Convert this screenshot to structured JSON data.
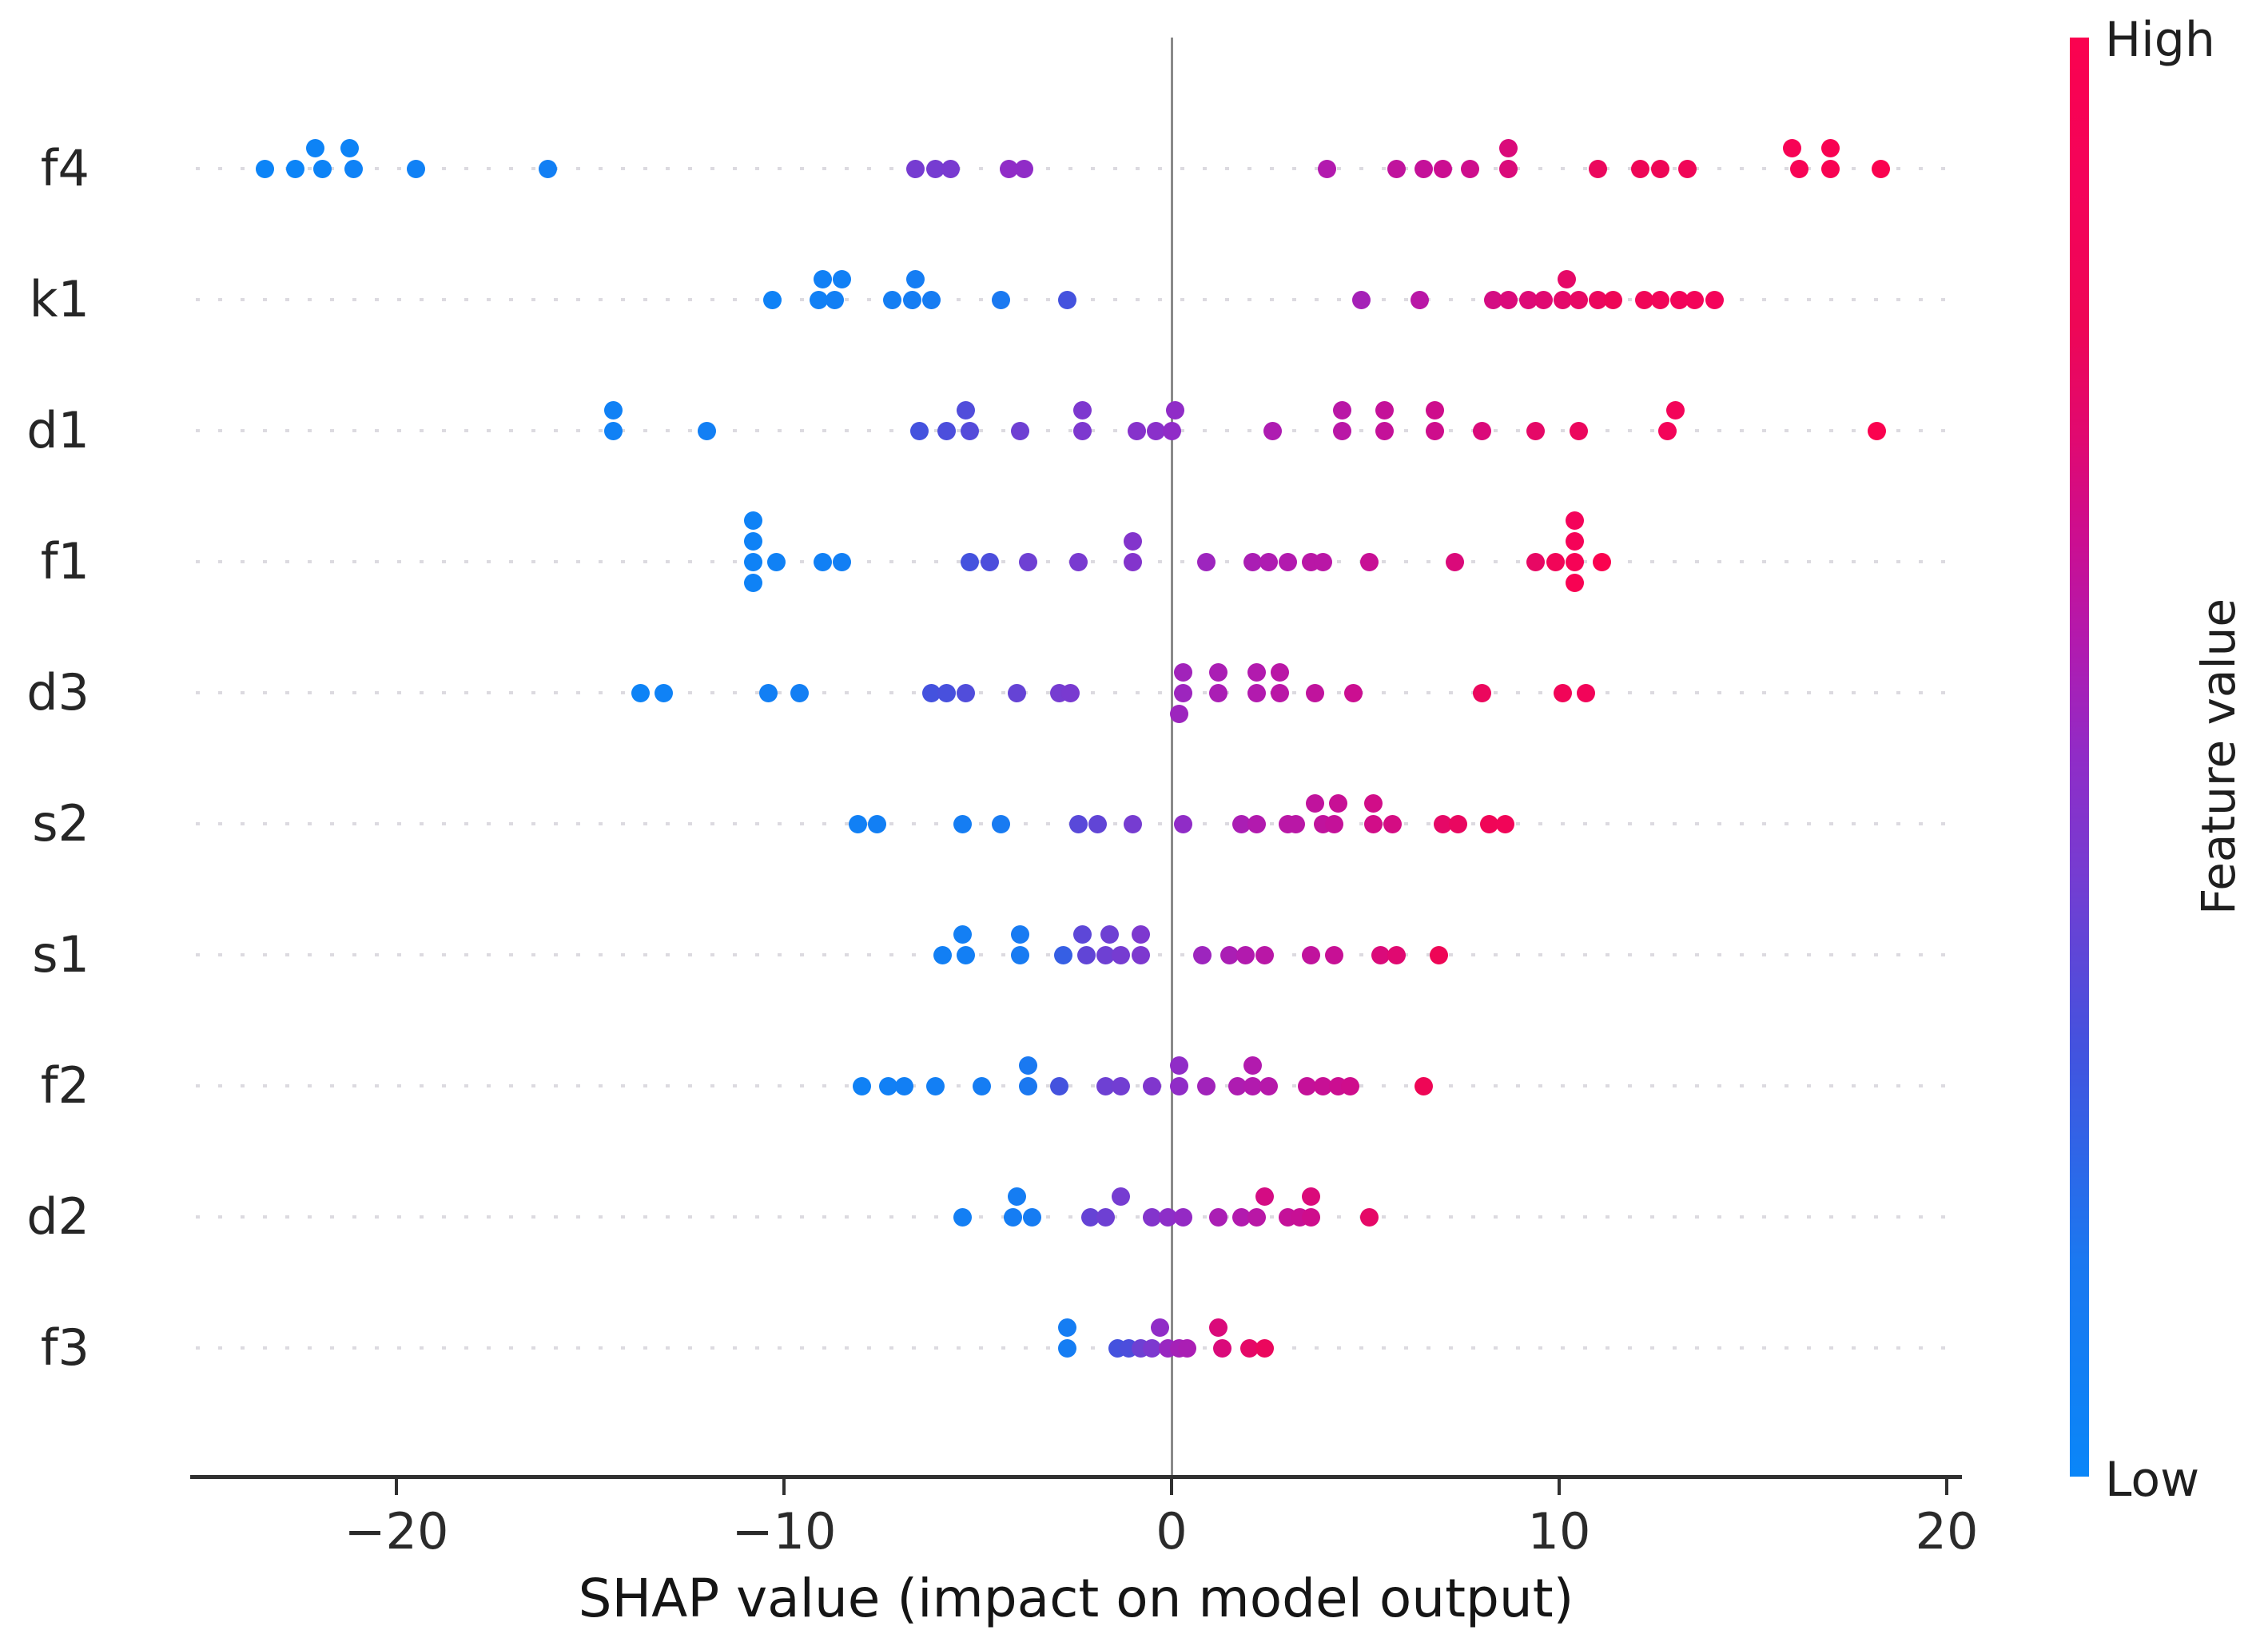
{
  "chart_data": {
    "type": "scatter",
    "subtype": "shap-beeswarm-summary",
    "title": "",
    "xlabel": "SHAP value (impact on model output)",
    "x_ticks": [
      -20,
      -10,
      0,
      10,
      20
    ],
    "x_tick_labels": [
      "−20",
      "−10",
      "0",
      "10",
      "20"
    ],
    "xlim": [
      -25.3,
      20.4
    ],
    "grid": "dotted-horizontal-rows",
    "legend_position": "right-colorbar",
    "features": [
      "f4",
      "k1",
      "d1",
      "f1",
      "d3",
      "s2",
      "s1",
      "f2",
      "d2",
      "f3"
    ],
    "colorbar": {
      "label": "Feature value",
      "high": "High",
      "low": "Low"
    },
    "point_format": "[shap_value, vertical_jitter_level, feature_value_normalized_0to1]",
    "series": [
      {
        "name": "f4",
        "points": [
          [
            -23.4,
            0,
            0.02
          ],
          [
            -22.6,
            0,
            0.02
          ],
          [
            -22.1,
            1,
            0.03
          ],
          [
            -21.9,
            0,
            0.03
          ],
          [
            -21.2,
            1,
            0.03
          ],
          [
            -21.1,
            0,
            0.04
          ],
          [
            -19.5,
            0,
            0.05
          ],
          [
            -16.1,
            0,
            0.07
          ],
          [
            -6.6,
            0,
            0.42
          ],
          [
            -6.1,
            0,
            0.42
          ],
          [
            -5.7,
            0,
            0.43
          ],
          [
            -4.2,
            0,
            0.5
          ],
          [
            -3.8,
            0,
            0.5
          ],
          [
            4.0,
            0,
            0.58
          ],
          [
            5.8,
            0,
            0.62
          ],
          [
            6.5,
            0,
            0.63
          ],
          [
            7.0,
            0,
            0.65
          ],
          [
            7.7,
            0,
            0.66
          ],
          [
            8.7,
            1,
            0.7
          ],
          [
            8.7,
            0,
            0.7
          ],
          [
            11.0,
            0,
            0.78
          ],
          [
            12.1,
            0,
            0.8
          ],
          [
            12.6,
            0,
            0.8
          ],
          [
            13.3,
            0,
            0.83
          ],
          [
            16.0,
            1,
            0.95
          ],
          [
            16.2,
            0,
            0.95
          ],
          [
            17.0,
            1,
            0.97
          ],
          [
            17.0,
            0,
            0.97
          ],
          [
            18.3,
            0,
            1.0
          ]
        ]
      },
      {
        "name": "k1",
        "points": [
          [
            -10.3,
            0,
            0.04
          ],
          [
            -9.1,
            0,
            0.06
          ],
          [
            -9.0,
            1,
            0.06
          ],
          [
            -8.7,
            0,
            0.07
          ],
          [
            -8.5,
            1,
            0.06
          ],
          [
            -7.2,
            0,
            0.09
          ],
          [
            -6.7,
            0,
            0.1
          ],
          [
            -6.6,
            1,
            0.1
          ],
          [
            -6.2,
            0,
            0.11
          ],
          [
            -4.4,
            0,
            0.14
          ],
          [
            -2.7,
            0,
            0.3
          ],
          [
            4.9,
            0,
            0.55
          ],
          [
            6.4,
            0,
            0.6
          ],
          [
            8.3,
            0,
            0.68
          ],
          [
            8.7,
            0,
            0.7
          ],
          [
            9.2,
            0,
            0.71
          ],
          [
            9.6,
            0,
            0.72
          ],
          [
            10.1,
            0,
            0.74
          ],
          [
            10.2,
            1,
            0.75
          ],
          [
            10.5,
            0,
            0.76
          ],
          [
            11.0,
            0,
            0.78
          ],
          [
            11.4,
            0,
            0.8
          ],
          [
            12.2,
            0,
            0.83
          ],
          [
            12.6,
            0,
            0.85
          ],
          [
            13.1,
            0,
            0.87
          ],
          [
            13.5,
            0,
            0.88
          ],
          [
            14.0,
            0,
            0.9
          ]
        ]
      },
      {
        "name": "d1",
        "points": [
          [
            -14.4,
            1,
            0.05
          ],
          [
            -14.4,
            0,
            0.05
          ],
          [
            -12.0,
            0,
            0.07
          ],
          [
            -6.5,
            0,
            0.3
          ],
          [
            -5.8,
            0,
            0.32
          ],
          [
            -5.3,
            1,
            0.33
          ],
          [
            -5.2,
            0,
            0.34
          ],
          [
            -3.9,
            0,
            0.4
          ],
          [
            -2.3,
            1,
            0.44
          ],
          [
            -2.3,
            0,
            0.44
          ],
          [
            -0.9,
            0,
            0.47
          ],
          [
            -0.4,
            0,
            0.48
          ],
          [
            0.0,
            0,
            0.5
          ],
          [
            0.1,
            1,
            0.5
          ],
          [
            2.6,
            0,
            0.57
          ],
          [
            4.4,
            1,
            0.6
          ],
          [
            4.4,
            0,
            0.6
          ],
          [
            5.5,
            1,
            0.63
          ],
          [
            5.5,
            0,
            0.63
          ],
          [
            6.8,
            1,
            0.66
          ],
          [
            6.8,
            0,
            0.66
          ],
          [
            8.0,
            0,
            0.7
          ],
          [
            9.4,
            0,
            0.75
          ],
          [
            10.5,
            0,
            0.78
          ],
          [
            12.8,
            0,
            0.88
          ],
          [
            13.0,
            1,
            0.88
          ],
          [
            18.2,
            0,
            1.0
          ]
        ]
      },
      {
        "name": "f1",
        "points": [
          [
            -10.8,
            2,
            0.04
          ],
          [
            -10.8,
            1,
            0.04
          ],
          [
            -10.8,
            0,
            0.04
          ],
          [
            -10.8,
            -1,
            0.04
          ],
          [
            -10.2,
            0,
            0.05
          ],
          [
            -9.0,
            0,
            0.06
          ],
          [
            -8.5,
            0,
            0.07
          ],
          [
            -5.2,
            0,
            0.3
          ],
          [
            -4.7,
            0,
            0.32
          ],
          [
            -3.7,
            0,
            0.4
          ],
          [
            -2.4,
            0,
            0.43
          ],
          [
            -1.0,
            1,
            0.46
          ],
          [
            -1.0,
            0,
            0.46
          ],
          [
            0.9,
            0,
            0.53
          ],
          [
            2.1,
            0,
            0.56
          ],
          [
            2.5,
            0,
            0.57
          ],
          [
            3.0,
            0,
            0.58
          ],
          [
            3.6,
            0,
            0.6
          ],
          [
            3.9,
            0,
            0.6
          ],
          [
            5.1,
            0,
            0.64
          ],
          [
            7.3,
            0,
            0.7
          ],
          [
            9.4,
            0,
            0.76
          ],
          [
            9.9,
            0,
            0.85
          ],
          [
            10.4,
            2,
            0.9
          ],
          [
            10.4,
            1,
            0.92
          ],
          [
            10.4,
            0,
            0.94
          ],
          [
            10.4,
            -1,
            0.96
          ],
          [
            11.1,
            0,
            1.0
          ]
        ]
      },
      {
        "name": "d3",
        "points": [
          [
            -13.7,
            0,
            0.03
          ],
          [
            -13.1,
            0,
            0.04
          ],
          [
            -10.4,
            0,
            0.07
          ],
          [
            -9.6,
            0,
            0.08
          ],
          [
            -6.2,
            0,
            0.3
          ],
          [
            -5.8,
            0,
            0.31
          ],
          [
            -5.3,
            0,
            0.33
          ],
          [
            -4.0,
            0,
            0.38
          ],
          [
            -2.9,
            0,
            0.42
          ],
          [
            -2.6,
            0,
            0.43
          ],
          [
            0.2,
            -1,
            0.53
          ],
          [
            0.3,
            0,
            0.53
          ],
          [
            0.3,
            1,
            0.54
          ],
          [
            1.2,
            1,
            0.56
          ],
          [
            1.2,
            0,
            0.56
          ],
          [
            2.2,
            1,
            0.58
          ],
          [
            2.2,
            0,
            0.58
          ],
          [
            2.8,
            1,
            0.6
          ],
          [
            2.8,
            0,
            0.6
          ],
          [
            3.7,
            0,
            0.62
          ],
          [
            4.7,
            0,
            0.65
          ],
          [
            8.0,
            0,
            0.78
          ],
          [
            10.1,
            0,
            0.85
          ],
          [
            10.7,
            0,
            0.87
          ]
        ]
      },
      {
        "name": "s2",
        "points": [
          [
            -8.1,
            0,
            0.06
          ],
          [
            -7.6,
            0,
            0.07
          ],
          [
            -5.4,
            0,
            0.1
          ],
          [
            -4.4,
            0,
            0.12
          ],
          [
            -2.4,
            0,
            0.35
          ],
          [
            -1.9,
            0,
            0.37
          ],
          [
            -1.0,
            0,
            0.42
          ],
          [
            0.3,
            0,
            0.5
          ],
          [
            1.8,
            0,
            0.56
          ],
          [
            2.2,
            0,
            0.58
          ],
          [
            3.0,
            0,
            0.6
          ],
          [
            3.2,
            0,
            0.6
          ],
          [
            3.7,
            1,
            0.62
          ],
          [
            3.9,
            0,
            0.62
          ],
          [
            4.2,
            0,
            0.63
          ],
          [
            4.3,
            1,
            0.64
          ],
          [
            5.2,
            1,
            0.67
          ],
          [
            5.2,
            0,
            0.67
          ],
          [
            5.7,
            0,
            0.68
          ],
          [
            7.0,
            0,
            0.75
          ],
          [
            7.4,
            0,
            0.77
          ],
          [
            8.2,
            0,
            0.83
          ],
          [
            8.6,
            0,
            0.85
          ]
        ]
      },
      {
        "name": "s1",
        "points": [
          [
            -5.9,
            0,
            0.07
          ],
          [
            -5.4,
            1,
            0.08
          ],
          [
            -5.3,
            0,
            0.08
          ],
          [
            -3.9,
            1,
            0.12
          ],
          [
            -3.9,
            0,
            0.12
          ],
          [
            -2.8,
            0,
            0.25
          ],
          [
            -2.3,
            1,
            0.36
          ],
          [
            -2.2,
            0,
            0.37
          ],
          [
            -1.7,
            0,
            0.4
          ],
          [
            -1.6,
            1,
            0.4
          ],
          [
            -1.3,
            0,
            0.42
          ],
          [
            -0.8,
            1,
            0.44
          ],
          [
            -0.8,
            0,
            0.44
          ],
          [
            0.8,
            0,
            0.53
          ],
          [
            1.5,
            0,
            0.56
          ],
          [
            1.9,
            0,
            0.58
          ],
          [
            2.4,
            0,
            0.6
          ],
          [
            3.6,
            0,
            0.62
          ],
          [
            4.2,
            0,
            0.64
          ],
          [
            5.4,
            0,
            0.7
          ],
          [
            5.8,
            0,
            0.72
          ],
          [
            6.9,
            0,
            0.8
          ]
        ]
      },
      {
        "name": "f2",
        "points": [
          [
            -8.0,
            0,
            0.05
          ],
          [
            -7.3,
            0,
            0.06
          ],
          [
            -6.9,
            0,
            0.07
          ],
          [
            -6.1,
            0,
            0.08
          ],
          [
            -4.9,
            0,
            0.1
          ],
          [
            -3.7,
            1,
            0.14
          ],
          [
            -3.7,
            0,
            0.15
          ],
          [
            -2.9,
            0,
            0.3
          ],
          [
            -1.7,
            0,
            0.4
          ],
          [
            -1.3,
            0,
            0.41
          ],
          [
            -0.5,
            0,
            0.45
          ],
          [
            0.2,
            1,
            0.5
          ],
          [
            0.2,
            0,
            0.5
          ],
          [
            0.9,
            0,
            0.54
          ],
          [
            1.7,
            0,
            0.57
          ],
          [
            2.1,
            1,
            0.58
          ],
          [
            2.1,
            0,
            0.58
          ],
          [
            2.5,
            0,
            0.59
          ],
          [
            3.5,
            0,
            0.63
          ],
          [
            3.9,
            0,
            0.64
          ],
          [
            4.3,
            0,
            0.65
          ],
          [
            4.6,
            0,
            0.66
          ],
          [
            6.5,
            0,
            0.8
          ]
        ]
      },
      {
        "name": "d2",
        "points": [
          [
            -5.4,
            0,
            0.08
          ],
          [
            -4.1,
            0,
            0.1
          ],
          [
            -4.0,
            1,
            0.1
          ],
          [
            -3.6,
            0,
            0.11
          ],
          [
            -2.1,
            0,
            0.38
          ],
          [
            -1.7,
            0,
            0.4
          ],
          [
            -1.3,
            1,
            0.42
          ],
          [
            -0.5,
            0,
            0.46
          ],
          [
            -0.1,
            0,
            0.49
          ],
          [
            0.3,
            0,
            0.51
          ],
          [
            1.2,
            0,
            0.56
          ],
          [
            1.8,
            0,
            0.58
          ],
          [
            2.2,
            0,
            0.6
          ],
          [
            2.4,
            1,
            0.68
          ],
          [
            3.0,
            0,
            0.63
          ],
          [
            3.3,
            0,
            0.64
          ],
          [
            3.6,
            1,
            0.7
          ],
          [
            3.6,
            0,
            0.66
          ],
          [
            5.1,
            0,
            0.75
          ]
        ]
      },
      {
        "name": "f3",
        "points": [
          [
            -2.7,
            1,
            0.1
          ],
          [
            -2.7,
            0,
            0.1
          ],
          [
            -1.4,
            0,
            0.3
          ],
          [
            -1.1,
            0,
            0.32
          ],
          [
            -0.8,
            0,
            0.4
          ],
          [
            -0.5,
            0,
            0.44
          ],
          [
            -0.3,
            1,
            0.5
          ],
          [
            -0.1,
            0,
            0.52
          ],
          [
            0.2,
            0,
            0.55
          ],
          [
            0.4,
            0,
            0.56
          ],
          [
            1.2,
            1,
            0.7
          ],
          [
            1.3,
            0,
            0.7
          ],
          [
            2.0,
            0,
            0.75
          ],
          [
            2.4,
            0,
            0.78
          ]
        ]
      }
    ]
  },
  "colors": {
    "background": "#ffffff",
    "axis": "#303030",
    "text": "#262626",
    "gridline": "#dcdae0",
    "zero_line": "#8a8a8a",
    "colormap_low": "#0a86f8",
    "colormap_high": "#fa024f",
    "colormap_stops": [
      [
        0.0,
        "#0a86f8"
      ],
      [
        0.15,
        "#1b78f0"
      ],
      [
        0.3,
        "#4452de"
      ],
      [
        0.42,
        "#763cd1"
      ],
      [
        0.5,
        "#902cc7"
      ],
      [
        0.58,
        "#b21aae"
      ],
      [
        0.65,
        "#cb0e91"
      ],
      [
        0.72,
        "#e00971"
      ],
      [
        0.8,
        "#ee0656"
      ],
      [
        0.9,
        "#f4035a"
      ],
      [
        1.0,
        "#fa024f"
      ]
    ]
  }
}
